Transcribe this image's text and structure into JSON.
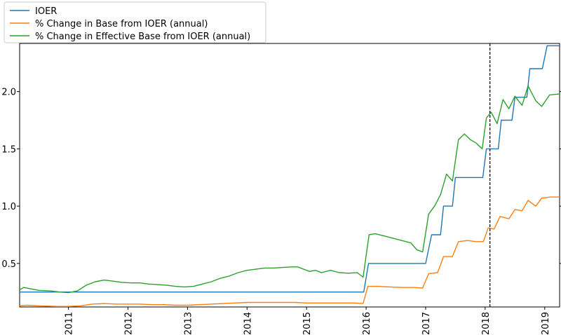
{
  "chart_data": {
    "type": "line",
    "title": "",
    "xlabel": "",
    "ylabel": "",
    "xlim": [
      2010.18,
      2019.25
    ],
    "ylim": [
      0.12,
      2.42
    ],
    "grid": false,
    "legend_position": "top-left",
    "x_ticks": [
      2011,
      2012,
      2013,
      2014,
      2015,
      2016,
      2017,
      2018,
      2019
    ],
    "y_ticks": [
      0.5,
      1.0,
      1.5,
      2.0
    ],
    "x_tick_labels": [
      "2011",
      "2012",
      "2013",
      "2014",
      "2015",
      "2016",
      "2017",
      "2018",
      "2019"
    ],
    "y_tick_labels": [
      "0.5",
      "1.0",
      "1.5",
      "2.0"
    ],
    "vline": {
      "x": 2018.08,
      "style": "dashed",
      "color": "#000000"
    },
    "series": [
      {
        "name": "IOER",
        "color": "#1f77b4",
        "step": true,
        "points": [
          [
            2010.18,
            0.25
          ],
          [
            2015.96,
            0.25
          ],
          [
            2015.96,
            0.25
          ],
          [
            2016.04,
            0.5
          ],
          [
            2017.0,
            0.5
          ],
          [
            2017.1,
            0.75
          ],
          [
            2017.25,
            0.75
          ],
          [
            2017.3,
            1.0
          ],
          [
            2017.45,
            1.0
          ],
          [
            2017.5,
            1.25
          ],
          [
            2017.96,
            1.25
          ],
          [
            2018.02,
            1.5
          ],
          [
            2018.22,
            1.5
          ],
          [
            2018.27,
            1.75
          ],
          [
            2018.45,
            1.75
          ],
          [
            2018.5,
            1.95
          ],
          [
            2018.7,
            1.95
          ],
          [
            2018.75,
            2.2
          ],
          [
            2018.96,
            2.2
          ],
          [
            2019.04,
            2.4
          ],
          [
            2019.25,
            2.4
          ]
        ]
      },
      {
        "name": "% Change in Base from IOER (annual)",
        "color": "#ff7f0e",
        "step": false,
        "points": [
          [
            2010.18,
            0.13
          ],
          [
            2010.3,
            0.135
          ],
          [
            2010.5,
            0.13
          ],
          [
            2010.8,
            0.125
          ],
          [
            2011.0,
            0.125
          ],
          [
            2011.2,
            0.13
          ],
          [
            2011.4,
            0.145
          ],
          [
            2011.6,
            0.15
          ],
          [
            2011.8,
            0.145
          ],
          [
            2012.0,
            0.145
          ],
          [
            2012.2,
            0.145
          ],
          [
            2012.4,
            0.14
          ],
          [
            2012.6,
            0.14
          ],
          [
            2012.8,
            0.135
          ],
          [
            2013.0,
            0.135
          ],
          [
            2013.2,
            0.14
          ],
          [
            2013.4,
            0.145
          ],
          [
            2013.6,
            0.15
          ],
          [
            2013.8,
            0.155
          ],
          [
            2014.0,
            0.16
          ],
          [
            2014.2,
            0.16
          ],
          [
            2014.4,
            0.16
          ],
          [
            2014.6,
            0.16
          ],
          [
            2014.8,
            0.16
          ],
          [
            2015.0,
            0.155
          ],
          [
            2015.2,
            0.155
          ],
          [
            2015.4,
            0.155
          ],
          [
            2015.6,
            0.155
          ],
          [
            2015.8,
            0.155
          ],
          [
            2015.95,
            0.15
          ],
          [
            2016.03,
            0.3
          ],
          [
            2016.2,
            0.3
          ],
          [
            2016.4,
            0.295
          ],
          [
            2016.6,
            0.29
          ],
          [
            2016.8,
            0.29
          ],
          [
            2016.95,
            0.285
          ],
          [
            2017.05,
            0.41
          ],
          [
            2017.2,
            0.42
          ],
          [
            2017.3,
            0.56
          ],
          [
            2017.45,
            0.56
          ],
          [
            2017.55,
            0.69
          ],
          [
            2017.7,
            0.7
          ],
          [
            2017.85,
            0.69
          ],
          [
            2017.97,
            0.69
          ],
          [
            2018.05,
            0.81
          ],
          [
            2018.15,
            0.8
          ],
          [
            2018.25,
            0.91
          ],
          [
            2018.4,
            0.89
          ],
          [
            2018.5,
            0.97
          ],
          [
            2018.62,
            0.96
          ],
          [
            2018.72,
            1.05
          ],
          [
            2018.85,
            1.0
          ],
          [
            2018.95,
            1.07
          ],
          [
            2019.1,
            1.08
          ],
          [
            2019.25,
            1.08
          ]
        ]
      },
      {
        "name": "% Change in Effective Base from IOER (annual)",
        "color": "#2ca02c",
        "step": false,
        "points": [
          [
            2010.18,
            0.27
          ],
          [
            2010.25,
            0.29
          ],
          [
            2010.35,
            0.28
          ],
          [
            2010.5,
            0.265
          ],
          [
            2010.7,
            0.26
          ],
          [
            2010.85,
            0.25
          ],
          [
            2011.0,
            0.245
          ],
          [
            2011.15,
            0.26
          ],
          [
            2011.3,
            0.31
          ],
          [
            2011.45,
            0.34
          ],
          [
            2011.6,
            0.355
          ],
          [
            2011.75,
            0.345
          ],
          [
            2011.9,
            0.335
          ],
          [
            2012.05,
            0.33
          ],
          [
            2012.2,
            0.33
          ],
          [
            2012.35,
            0.32
          ],
          [
            2012.5,
            0.315
          ],
          [
            2012.65,
            0.31
          ],
          [
            2012.8,
            0.3
          ],
          [
            2012.95,
            0.295
          ],
          [
            2013.1,
            0.3
          ],
          [
            2013.25,
            0.32
          ],
          [
            2013.4,
            0.34
          ],
          [
            2013.55,
            0.37
          ],
          [
            2013.7,
            0.39
          ],
          [
            2013.85,
            0.42
          ],
          [
            2014.0,
            0.44
          ],
          [
            2014.15,
            0.45
          ],
          [
            2014.3,
            0.46
          ],
          [
            2014.45,
            0.46
          ],
          [
            2014.6,
            0.465
          ],
          [
            2014.75,
            0.47
          ],
          [
            2014.85,
            0.47
          ],
          [
            2014.95,
            0.45
          ],
          [
            2015.05,
            0.43
          ],
          [
            2015.15,
            0.44
          ],
          [
            2015.25,
            0.42
          ],
          [
            2015.4,
            0.44
          ],
          [
            2015.55,
            0.42
          ],
          [
            2015.7,
            0.415
          ],
          [
            2015.85,
            0.42
          ],
          [
            2015.95,
            0.38
          ],
          [
            2016.05,
            0.75
          ],
          [
            2016.15,
            0.76
          ],
          [
            2016.3,
            0.74
          ],
          [
            2016.45,
            0.72
          ],
          [
            2016.6,
            0.7
          ],
          [
            2016.75,
            0.68
          ],
          [
            2016.85,
            0.62
          ],
          [
            2016.95,
            0.6
          ],
          [
            2017.05,
            0.93
          ],
          [
            2017.15,
            1.0
          ],
          [
            2017.25,
            1.1
          ],
          [
            2017.35,
            1.28
          ],
          [
            2017.45,
            1.22
          ],
          [
            2017.55,
            1.58
          ],
          [
            2017.65,
            1.63
          ],
          [
            2017.75,
            1.58
          ],
          [
            2017.85,
            1.55
          ],
          [
            2017.95,
            1.5
          ],
          [
            2018.02,
            1.77
          ],
          [
            2018.1,
            1.82
          ],
          [
            2018.2,
            1.72
          ],
          [
            2018.3,
            1.93
          ],
          [
            2018.4,
            1.85
          ],
          [
            2018.5,
            1.96
          ],
          [
            2018.62,
            1.88
          ],
          [
            2018.72,
            2.05
          ],
          [
            2018.85,
            1.92
          ],
          [
            2018.95,
            1.87
          ],
          [
            2019.08,
            1.97
          ],
          [
            2019.25,
            1.98
          ]
        ]
      }
    ]
  }
}
